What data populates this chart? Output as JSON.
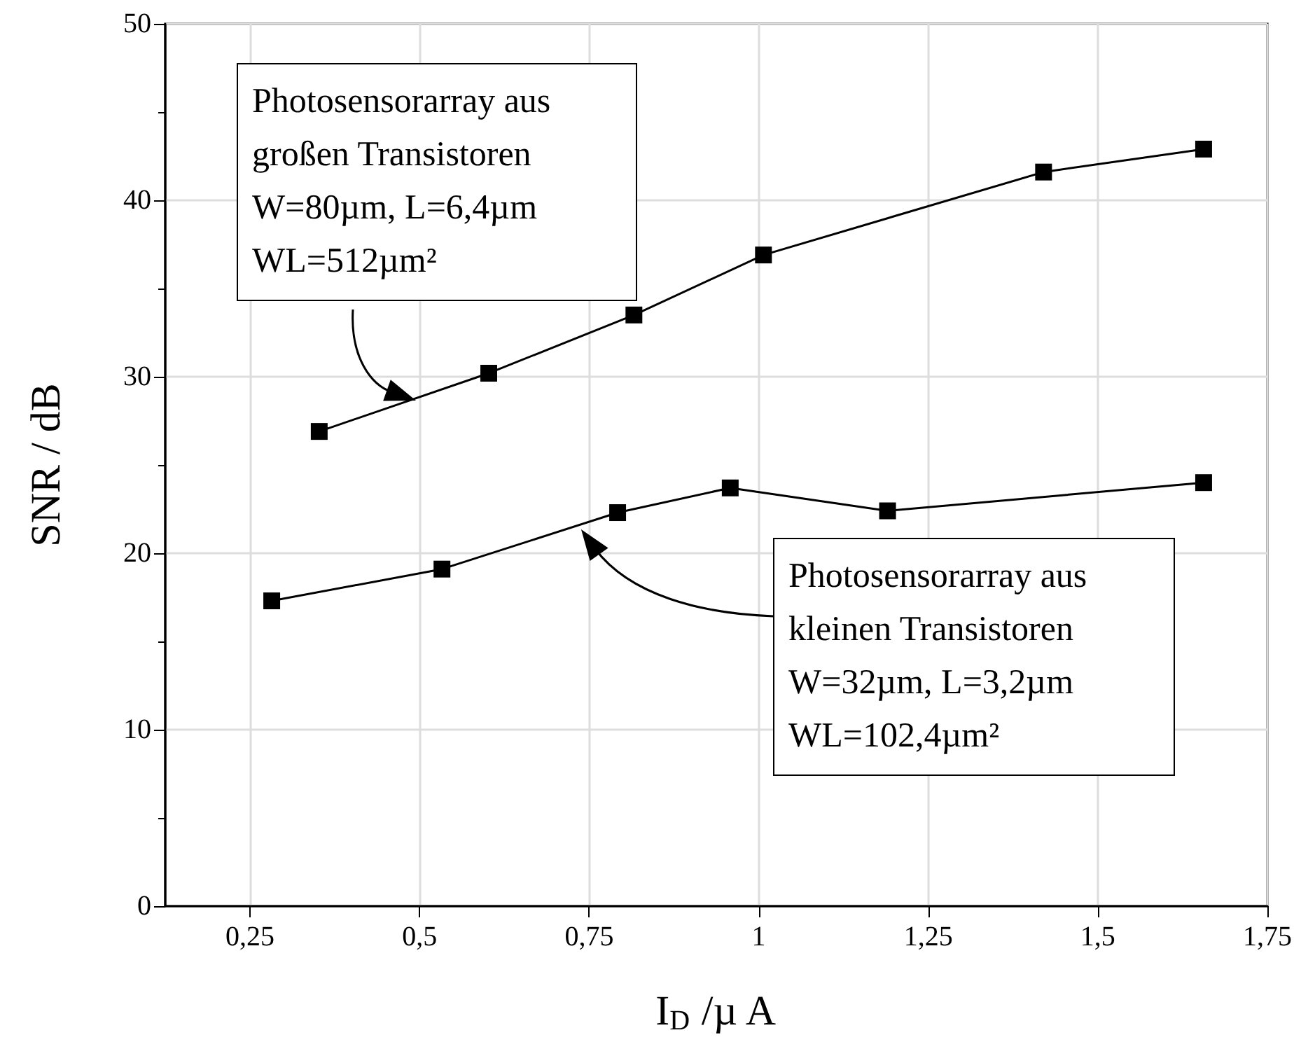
{
  "chart_data": {
    "type": "line",
    "xlabel": "I$_{D}$ /µ A",
    "ylabel": "SNR / dB",
    "xlim": [
      0.125,
      1.75
    ],
    "xticks": [
      {
        "value": 0.25,
        "label": "0,25"
      },
      {
        "value": 0.5,
        "label": "0,5"
      },
      {
        "value": 0.75,
        "label": "0,75"
      },
      1,
      {
        "value": 1.25,
        "label": "1,25"
      },
      {
        "value": 1.5,
        "label": "1,5"
      },
      {
        "value": 1.75,
        "label": "1,75"
      }
    ],
    "ylim": [
      0,
      50
    ],
    "yticks": [
      0,
      10,
      20,
      30,
      40,
      50
    ],
    "grid": true,
    "marker": "square",
    "line_style": "solid",
    "series": [
      {
        "color": "#000000",
        "x": [
          0.352,
          0.602,
          0.816,
          1.007,
          1.42,
          1.656
        ],
        "values": [
          26.9,
          30.2,
          33.5,
          36.9,
          41.6,
          42.9
        ]
      },
      {
        "color": "#000000",
        "x": [
          0.282,
          0.533,
          0.792,
          0.958,
          1.19,
          1.656
        ],
        "values": [
          17.3,
          19.1,
          22.3,
          23.7,
          22.4,
          24.0
        ]
      }
    ],
    "annotations": [
      "Photosensorarray aus\ngroßen Transistoren\nW=80µm, L=6,4µm\nWL=512µm²",
      "Photosensorarray aus\nkleinen Transistoren\nW=32µm, L=3,2µm\nWL=102,4µm²"
    ]
  }
}
